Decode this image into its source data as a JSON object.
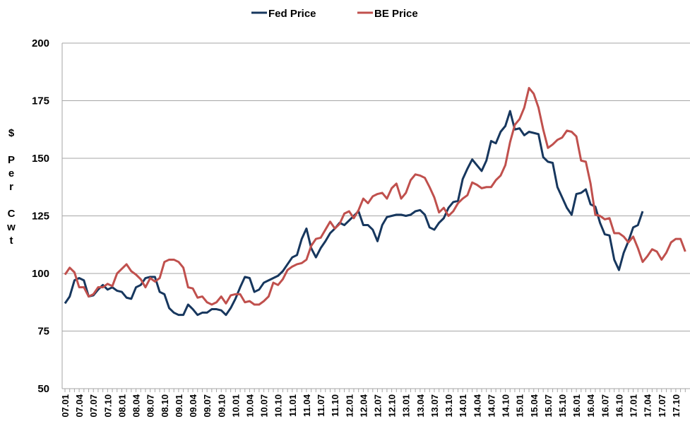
{
  "chart_data": {
    "type": "line",
    "y_label": "$ Per Cwt",
    "categories": [
      "07.01",
      null,
      null,
      "07.04",
      null,
      null,
      "07.07",
      null,
      null,
      "07.10",
      null,
      null,
      "08.01",
      null,
      null,
      "08.04",
      null,
      null,
      "08.07",
      null,
      null,
      "08.10",
      null,
      null,
      "09.01",
      null,
      null,
      "09.04",
      null,
      null,
      "09.07",
      null,
      null,
      "09.10",
      null,
      null,
      "10.01",
      null,
      null,
      "10.04",
      null,
      null,
      "10.07",
      null,
      null,
      "10.10",
      null,
      null,
      "11.01",
      null,
      null,
      "11.04",
      null,
      null,
      "11.07",
      null,
      null,
      "11.10",
      null,
      null,
      "12.01",
      null,
      null,
      "12.04",
      null,
      null,
      "12.07",
      null,
      null,
      "12.10",
      null,
      null,
      "13.01",
      null,
      null,
      "13.04",
      null,
      null,
      "13.07",
      null,
      null,
      "13.10",
      null,
      null,
      "14.01",
      null,
      null,
      "14.04",
      null,
      null,
      "14.07",
      null,
      null,
      "14.10",
      null,
      null,
      "15.01",
      null,
      null,
      "15.04",
      null,
      null,
      "15.07",
      null,
      null,
      "15.10",
      null,
      null,
      "16.01",
      null,
      null,
      "16.04",
      null,
      null,
      "16.07",
      null,
      null,
      "16.10",
      null,
      null,
      "17.01",
      null,
      null,
      "17.04",
      null,
      null,
      "17.07",
      null,
      null,
      "17.10",
      null,
      null
    ],
    "series": [
      {
        "name": "Fed Price",
        "color": "#17375e",
        "values": [
          87,
          90,
          97,
          98,
          97,
          90,
          90.5,
          93,
          95,
          93,
          94,
          92.5,
          92,
          89.5,
          89,
          94,
          95,
          98,
          98.5,
          98.5,
          92,
          91,
          85,
          83,
          82,
          82,
          86.5,
          84.5,
          82,
          83,
          83,
          84.5,
          84.5,
          84,
          82,
          85,
          89,
          94,
          98.5,
          98,
          92,
          93,
          96,
          97,
          98,
          99,
          101,
          104,
          107,
          108,
          115,
          119.5,
          111,
          107,
          111,
          114,
          117.5,
          119.5,
          122,
          121,
          123,
          125,
          127,
          121,
          121,
          119,
          114,
          121,
          124.5,
          125,
          125.5,
          125.5,
          125,
          125.5,
          127,
          127.5,
          125.5,
          120,
          119,
          122,
          124,
          128.5,
          131,
          131.5,
          141,
          145.5,
          149.5,
          147,
          144.5,
          149,
          157.5,
          156.5,
          161.5,
          164,
          170.5,
          162.5,
          163,
          160,
          161.5,
          161,
          160.5,
          150.5,
          148.5,
          148,
          137.5,
          133,
          128.5,
          125.5,
          134.5,
          135,
          136.5,
          130,
          129,
          122,
          117,
          116.5,
          106,
          101.5,
          109,
          114,
          120,
          121,
          127,
          null,
          null,
          null,
          null,
          null,
          null,
          null,
          null,
          null
        ]
      },
      {
        "name": "BE Price",
        "color": "#c0504d",
        "values": [
          99.5,
          102.5,
          100.5,
          94,
          94,
          90,
          91,
          94,
          94,
          95.5,
          94.5,
          100,
          102,
          104,
          101,
          99.5,
          97.5,
          94,
          98,
          96.5,
          98,
          105,
          106,
          106,
          105,
          102.5,
          94,
          93.5,
          89.5,
          90,
          87.5,
          86.5,
          87.5,
          90,
          87,
          90.5,
          91,
          91,
          87.5,
          88,
          86.5,
          86.5,
          88,
          90,
          96,
          95,
          97.5,
          101.5,
          103,
          104,
          104.5,
          106,
          112,
          115,
          115.5,
          119,
          122.5,
          119.5,
          121.5,
          126,
          127,
          124,
          127.5,
          132.5,
          130.5,
          133.5,
          134.5,
          135,
          132.5,
          137,
          139,
          132.5,
          135,
          140.5,
          143,
          142.5,
          141.5,
          137.5,
          133,
          126.5,
          128.5,
          125,
          127,
          130.5,
          132.5,
          134,
          139.5,
          138.5,
          137,
          137.5,
          137.5,
          140.5,
          142.5,
          147,
          157,
          164.5,
          167,
          172,
          180.5,
          178,
          172,
          162.5,
          154.5,
          156,
          158,
          159,
          162,
          161.5,
          159.5,
          149,
          148.5,
          139,
          125.5,
          125,
          123.5,
          124,
          117.5,
          117.5,
          116,
          113.5,
          116,
          111,
          105,
          107.5,
          110.5,
          109.5,
          106,
          109,
          113.5,
          115,
          115,
          109.5
        ]
      }
    ],
    "ylim": [
      50,
      200
    ],
    "yticks": [
      50,
      75,
      100,
      125,
      150,
      175,
      200
    ],
    "grid": true,
    "legend": "top"
  }
}
